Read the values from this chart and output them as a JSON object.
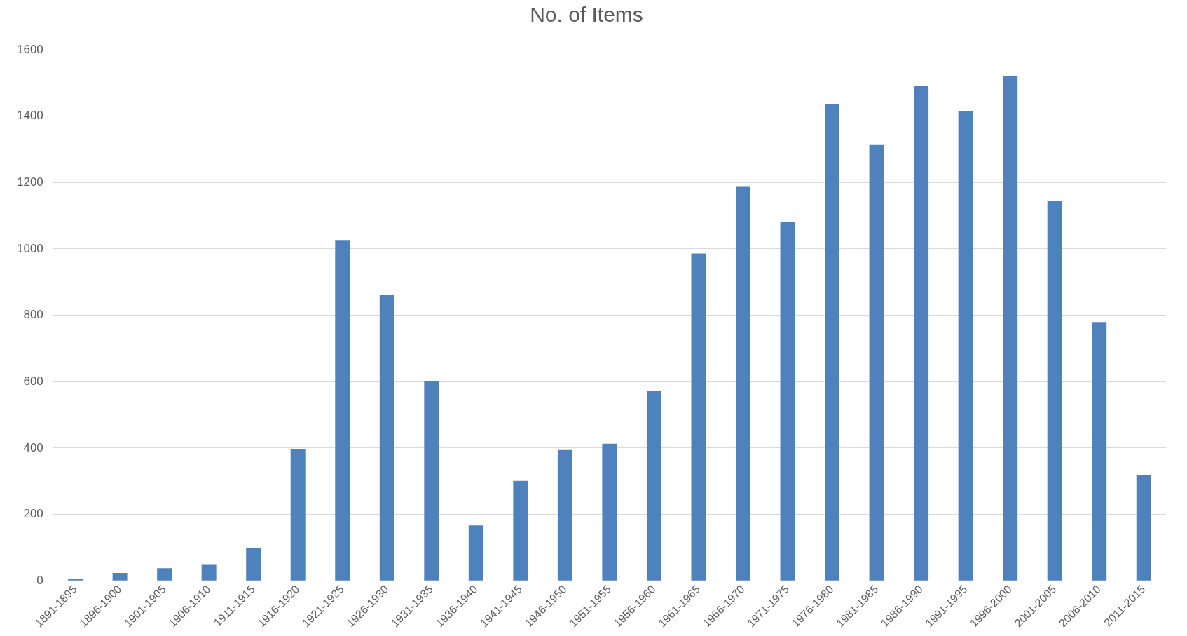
{
  "chart_data": {
    "type": "bar",
    "title": "No. of Items",
    "categories": [
      "1891-1895",
      "1896-1900",
      "1901-1905",
      "1906-1910",
      "1911-1915",
      "1916-1920",
      "1921-1925",
      "1926-1930",
      "1931-1935",
      "1936-1940",
      "1941-1945",
      "1946-1950",
      "1951-1955",
      "1956-1960",
      "1961-1965",
      "1966-1970",
      "1971-1975",
      "1976-1980",
      "1981-1985",
      "1986-1990",
      "1991-1995",
      "1996-2000",
      "2001-2005",
      "2006-2010",
      "2011-2015"
    ],
    "values": [
      5,
      24,
      38,
      48,
      98,
      396,
      1027,
      862,
      602,
      167,
      301,
      394,
      413,
      573,
      986,
      1189,
      1081,
      1437,
      1313,
      1492,
      1415,
      1520,
      1144,
      780,
      318
    ],
    "color": "#4f81bd",
    "ylim": [
      0,
      1600
    ],
    "yticks": [
      0,
      200,
      400,
      600,
      800,
      1000,
      1200,
      1400,
      1600
    ],
    "grid": "y"
  }
}
